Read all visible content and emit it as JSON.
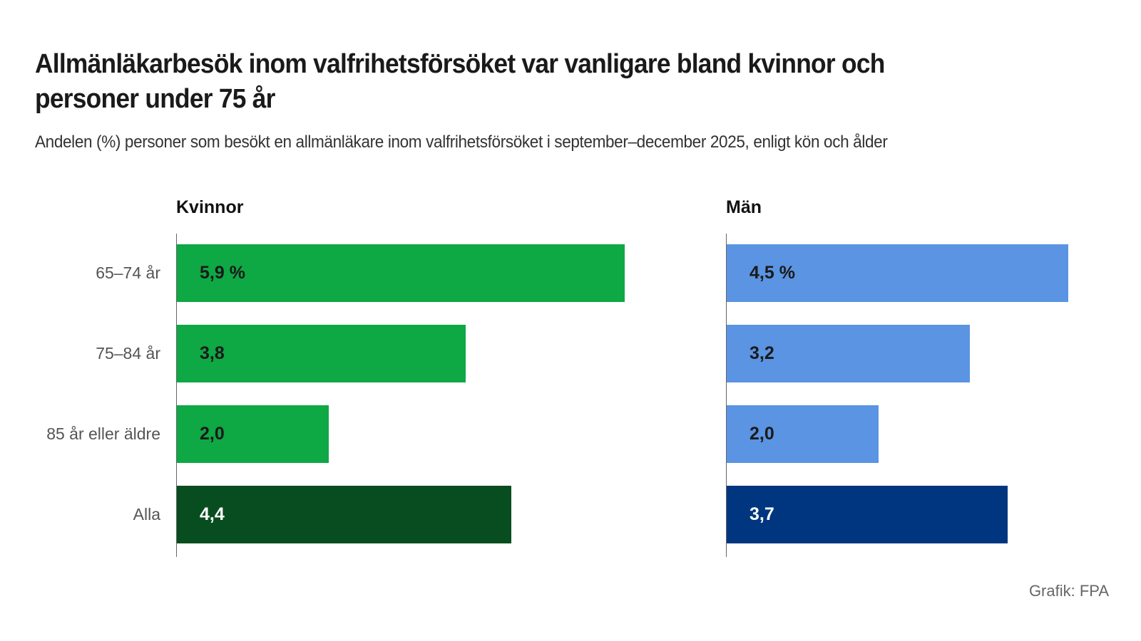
{
  "chart_data": [
    {
      "type": "bar",
      "orientation": "horizontal",
      "panel_title": "Kvinnor",
      "categories": [
        "65–74 år",
        "75–84 år",
        "85 år eller äldre",
        "Alla"
      ],
      "values": [
        5.9,
        3.8,
        2.0,
        4.4
      ],
      "value_labels": [
        "5,9 %",
        "3,8",
        "2,0",
        "4,4"
      ],
      "colors": [
        "#0ea844",
        "#0ea844",
        "#0ea844",
        "#074d20"
      ],
      "label_colors": [
        "#1a1a1a",
        "#1a1a1a",
        "#1a1a1a",
        "#ffffff"
      ],
      "xlim": [
        0,
        6.2
      ],
      "grid": false
    },
    {
      "type": "bar",
      "orientation": "horizontal",
      "panel_title": "Män",
      "categories": [
        "65–74 år",
        "75–84 år",
        "85 år eller äldre",
        "Alla"
      ],
      "values": [
        4.5,
        3.2,
        2.0,
        3.7
      ],
      "value_labels": [
        "4,5 %",
        "3,2",
        "2,0",
        "3,7"
      ],
      "colors": [
        "#5a94e2",
        "#5a94e2",
        "#5a94e2",
        "#00367f"
      ],
      "label_colors": [
        "#1a1a1a",
        "#1a1a1a",
        "#1a1a1a",
        "#ffffff"
      ],
      "xlim": [
        0,
        6.2
      ],
      "grid": false
    }
  ],
  "header": {
    "title_line1": "Allmänläkarbesök inom valfrihetsförsöket var vanligare bland kvinnor och",
    "title_line2": "personer under 75 år",
    "subtitle": "Andelen (%) personer som besökt en allmänläkare inom valfrihetsförsöket i september–december 2025, enligt kön och ålder"
  },
  "footer": {
    "credit": "Grafik: FPA"
  }
}
